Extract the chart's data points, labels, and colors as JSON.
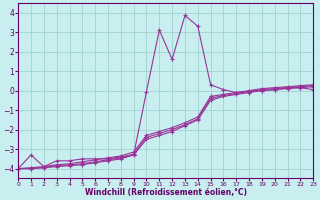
{
  "title": "",
  "xlabel": "Windchill (Refroidissement éolien,°C)",
  "ylabel": "",
  "bg_color": "#c8eef0",
  "grid_color": "#99cccc",
  "line_color": "#993399",
  "xlim": [
    0,
    23
  ],
  "ylim": [
    -4.5,
    4.5
  ],
  "xticks": [
    0,
    1,
    2,
    3,
    4,
    5,
    6,
    7,
    8,
    9,
    10,
    11,
    12,
    13,
    14,
    15,
    16,
    17,
    18,
    19,
    20,
    21,
    22,
    23
  ],
  "yticks": [
    -4,
    -3,
    -2,
    -1,
    0,
    1,
    2,
    3,
    4
  ],
  "series1_x": [
    0,
    1,
    2,
    3,
    4,
    5,
    6,
    7,
    8,
    9,
    10,
    11,
    12,
    13,
    14,
    15,
    16,
    17,
    18,
    19,
    20,
    21,
    22,
    23
  ],
  "series1_y": [
    -4.0,
    -3.3,
    -3.9,
    -3.6,
    -3.6,
    -3.5,
    -3.5,
    -3.5,
    -3.4,
    -3.3,
    -0.05,
    3.1,
    1.6,
    3.85,
    3.3,
    0.3,
    0.05,
    -0.1,
    -0.05,
    0.0,
    0.05,
    0.15,
    0.15,
    0.05
  ],
  "series2_x": [
    0,
    1,
    2,
    3,
    4,
    5,
    6,
    7,
    8,
    9,
    10,
    11,
    12,
    13,
    14,
    15,
    16,
    17,
    18,
    19,
    20,
    21,
    22,
    23
  ],
  "series2_y": [
    -4.0,
    -4.0,
    -3.95,
    -3.9,
    -3.85,
    -3.8,
    -3.7,
    -3.6,
    -3.5,
    -3.3,
    -2.5,
    -2.3,
    -2.1,
    -1.8,
    -1.5,
    -0.5,
    -0.3,
    -0.2,
    -0.1,
    0.0,
    0.05,
    0.1,
    0.15,
    0.2
  ],
  "series3_x": [
    0,
    1,
    2,
    3,
    4,
    5,
    6,
    7,
    8,
    9,
    10,
    11,
    12,
    13,
    14,
    15,
    16,
    17,
    18,
    19,
    20,
    21,
    22,
    23
  ],
  "series3_y": [
    -4.0,
    -4.0,
    -3.95,
    -3.85,
    -3.8,
    -3.75,
    -3.65,
    -3.55,
    -3.45,
    -3.25,
    -2.4,
    -2.2,
    -2.0,
    -1.75,
    -1.45,
    -0.4,
    -0.25,
    -0.15,
    -0.05,
    0.05,
    0.1,
    0.15,
    0.2,
    0.25
  ],
  "series4_x": [
    0,
    1,
    2,
    3,
    4,
    5,
    6,
    7,
    8,
    9,
    10,
    11,
    12,
    13,
    14,
    15,
    16,
    17,
    18,
    19,
    20,
    21,
    22,
    23
  ],
  "series4_y": [
    -4.0,
    -3.95,
    -3.9,
    -3.8,
    -3.75,
    -3.65,
    -3.55,
    -3.45,
    -3.35,
    -3.15,
    -2.3,
    -2.1,
    -1.9,
    -1.65,
    -1.35,
    -0.3,
    -0.2,
    -0.1,
    0.0,
    0.1,
    0.15,
    0.2,
    0.25,
    0.3
  ]
}
